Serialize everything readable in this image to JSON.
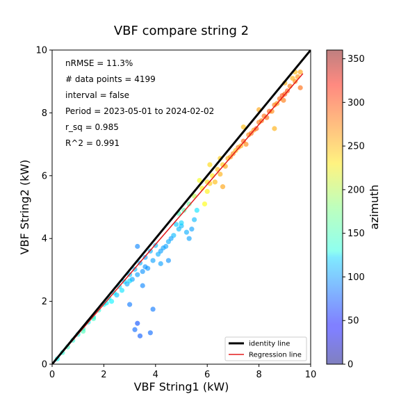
{
  "chart_data": {
    "type": "scatter",
    "title": "VBF compare string 2",
    "xlabel": "VBF String1 (kW)",
    "ylabel": "VBF String2 (kW)",
    "xlim": [
      0,
      10
    ],
    "ylim": [
      0,
      10
    ],
    "xticks": [
      "0",
      "2",
      "4",
      "6",
      "8",
      "10"
    ],
    "yticks": [
      "0",
      "2",
      "4",
      "6",
      "8",
      "10"
    ],
    "stats": [
      "nRMSE = 11.3%",
      "# data points = 4199",
      "interval = false",
      "Period = 2023-05-01 to 2024-02-02",
      "r_sq = 0.985",
      "R^2 = 0.991"
    ],
    "legend": {
      "placement": "lower-right",
      "entries": [
        {
          "label": "identity line",
          "color": "#000000"
        },
        {
          "label": "Regression line",
          "color": "#e41a1c"
        }
      ]
    },
    "colorbar": {
      "label": "azimuth",
      "range": [
        0,
        360
      ],
      "ticks": [
        "0",
        "50",
        "100",
        "150",
        "200",
        "250",
        "300",
        "350"
      ],
      "colormap": "jet"
    },
    "identity_line": {
      "x": [
        0,
        10
      ],
      "y": [
        0,
        10
      ]
    },
    "regression_line": {
      "x": [
        0,
        9.7
      ],
      "y": [
        0,
        9.25
      ]
    },
    "series": [
      {
        "points": [
          [
            0.2,
            0.17,
            140
          ],
          [
            0.4,
            0.37,
            150
          ],
          [
            0.6,
            0.55,
            155
          ],
          [
            0.8,
            0.76,
            150
          ],
          [
            1.0,
            0.95,
            145
          ],
          [
            1.2,
            1.13,
            150
          ],
          [
            1.4,
            1.34,
            140
          ],
          [
            1.6,
            1.5,
            145
          ],
          [
            1.8,
            1.72,
            150
          ],
          [
            2.0,
            1.9,
            140
          ],
          [
            2.2,
            2.1,
            135
          ],
          [
            2.4,
            2.27,
            130
          ],
          [
            2.6,
            2.47,
            125
          ],
          [
            2.8,
            2.63,
            120
          ],
          [
            3.0,
            2.85,
            115
          ],
          [
            3.2,
            3.02,
            110
          ],
          [
            3.4,
            3.22,
            105
          ],
          [
            3.6,
            3.4,
            100
          ],
          [
            3.8,
            3.6,
            105
          ],
          [
            4.0,
            3.78,
            110
          ],
          [
            1.2,
            1.05,
            160
          ],
          [
            1.6,
            1.45,
            155
          ],
          [
            2.1,
            1.95,
            130
          ],
          [
            2.5,
            2.2,
            115
          ],
          [
            2.9,
            2.55,
            105
          ],
          [
            3.1,
            2.7,
            100
          ],
          [
            3.3,
            2.85,
            100
          ],
          [
            3.5,
            2.95,
            95
          ],
          [
            3.7,
            3.05,
            95
          ],
          [
            3.9,
            3.3,
            100
          ],
          [
            4.1,
            3.5,
            105
          ],
          [
            4.3,
            3.7,
            100
          ],
          [
            4.5,
            3.9,
            105
          ],
          [
            4.7,
            4.1,
            110
          ],
          [
            4.9,
            4.3,
            110
          ],
          [
            3.0,
            2.65,
            120
          ],
          [
            2.7,
            2.35,
            125
          ],
          [
            2.3,
            2.0,
            130
          ],
          [
            3.6,
            3.1,
            95
          ],
          [
            4.2,
            3.6,
            100
          ],
          [
            4.4,
            3.75,
            100
          ],
          [
            4.6,
            4.0,
            100
          ],
          [
            5.0,
            4.4,
            110
          ],
          [
            5.2,
            4.2,
            105
          ],
          [
            5.4,
            4.3,
            100
          ],
          [
            5.5,
            4.6,
            110
          ],
          [
            5.3,
            4.0,
            100
          ],
          [
            5.0,
            4.5,
            120
          ],
          [
            4.8,
            4.45,
            115
          ],
          [
            5.6,
            4.9,
            125
          ],
          [
            3.2,
            1.1,
            80
          ],
          [
            3.3,
            1.3,
            70
          ],
          [
            3.4,
            0.9,
            75
          ],
          [
            3.8,
            1.0,
            80
          ],
          [
            3.9,
            1.75,
            85
          ],
          [
            3.3,
            3.75,
            90
          ],
          [
            4.2,
            3.2,
            100
          ],
          [
            4.5,
            3.3,
            95
          ],
          [
            3.5,
            2.5,
            90
          ],
          [
            3.0,
            1.9,
            85
          ],
          [
            4.9,
            4.8,
            160
          ],
          [
            5.1,
            4.9,
            165
          ],
          [
            5.3,
            5.1,
            170
          ],
          [
            5.5,
            5.35,
            200
          ],
          [
            5.8,
            5.6,
            230
          ],
          [
            6.0,
            5.8,
            240
          ],
          [
            6.2,
            6.0,
            235
          ],
          [
            6.4,
            6.2,
            250
          ],
          [
            6.6,
            6.35,
            245
          ],
          [
            6.8,
            6.55,
            255
          ],
          [
            6.0,
            5.5,
            230
          ],
          [
            5.9,
            5.1,
            225
          ],
          [
            6.1,
            5.75,
            245
          ],
          [
            6.3,
            5.8,
            250
          ],
          [
            6.5,
            6.05,
            255
          ],
          [
            6.7,
            6.3,
            260
          ],
          [
            6.9,
            6.6,
            265
          ],
          [
            7.0,
            6.7,
            270
          ],
          [
            7.2,
            6.9,
            275
          ],
          [
            7.4,
            7.1,
            280
          ],
          [
            7.6,
            7.3,
            270
          ],
          [
            7.8,
            7.45,
            265
          ],
          [
            8.0,
            7.7,
            275
          ],
          [
            8.2,
            7.9,
            280
          ],
          [
            8.4,
            8.05,
            285
          ],
          [
            8.6,
            8.25,
            275
          ],
          [
            8.8,
            8.45,
            280
          ],
          [
            9.0,
            8.6,
            285
          ],
          [
            9.2,
            8.85,
            275
          ],
          [
            9.4,
            9.0,
            270
          ],
          [
            9.5,
            9.15,
            265
          ],
          [
            9.6,
            9.3,
            260
          ],
          [
            9.3,
            9.1,
            255
          ],
          [
            9.1,
            8.7,
            285
          ],
          [
            8.9,
            8.55,
            290
          ],
          [
            7.1,
            6.8,
            250
          ],
          [
            7.3,
            6.95,
            255
          ],
          [
            7.5,
            7.0,
            270
          ],
          [
            7.7,
            7.35,
            280
          ],
          [
            7.9,
            7.5,
            285
          ],
          [
            8.1,
            7.75,
            275
          ],
          [
            8.3,
            7.85,
            280
          ],
          [
            8.5,
            8.05,
            270
          ],
          [
            8.7,
            8.3,
            265
          ],
          [
            8.95,
            8.4,
            275
          ],
          [
            6.6,
            5.65,
            260
          ],
          [
            6.1,
            6.35,
            240
          ],
          [
            5.7,
            5.85,
            220
          ],
          [
            9.6,
            8.8,
            280
          ],
          [
            8.6,
            7.5,
            255
          ],
          [
            8.0,
            8.1,
            260
          ],
          [
            7.4,
            7.55,
            250
          ],
          [
            6.5,
            6.55,
            245
          ],
          [
            9.4,
            9.3,
            250
          ],
          [
            9.0,
            8.95,
            255
          ]
        ]
      }
    ]
  }
}
